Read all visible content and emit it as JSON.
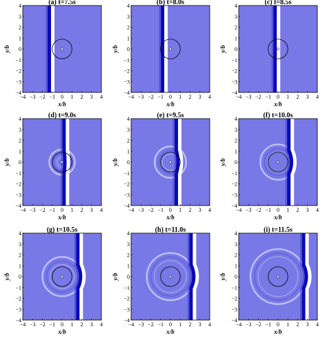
{
  "figure": {
    "colors": {
      "background": "#7878e6",
      "crest_core": "#0a0ab4",
      "crest_light": "#ffffff",
      "axis": "#000000"
    },
    "axis_labels": {
      "x": "x/b",
      "y": "y/b"
    }
  },
  "chart_data": [
    {
      "type": "heatmap",
      "title": "(a) t=7.5s",
      "xlabel": "x/b",
      "ylabel": "y/b",
      "xlim": [
        -4,
        4
      ],
      "ylim": [
        -4,
        4
      ],
      "xticks": [
        -4,
        -3,
        -2,
        -1,
        0,
        1,
        2,
        3,
        4
      ],
      "yticks": [
        4,
        3,
        2,
        1,
        0,
        -1,
        -2,
        -3,
        -4
      ],
      "wave_front_x": -1.3,
      "cylinder": {
        "center": [
          0,
          0
        ],
        "radius": 1
      },
      "scattered_wave_radius": null
    },
    {
      "type": "heatmap",
      "title": "(b) t=8.0s",
      "xlabel": "x/b",
      "ylabel": "y/b",
      "xlim": [
        -4,
        4
      ],
      "ylim": [
        -4,
        4
      ],
      "xticks": [
        -4,
        -3,
        -2,
        -1,
        0,
        1,
        2,
        3,
        4
      ],
      "yticks": [
        4,
        3,
        2,
        1,
        0,
        -1,
        -2,
        -3,
        -4
      ],
      "wave_front_x": -0.8,
      "cylinder": {
        "center": [
          0,
          0
        ],
        "radius": 1
      },
      "scattered_wave_radius": null
    },
    {
      "type": "heatmap",
      "title": "(c) t=8.5s",
      "xlabel": "x/b",
      "ylabel": "y/b",
      "xlim": [
        -4,
        4
      ],
      "ylim": [
        -4,
        4
      ],
      "xticks": [
        -4,
        -3,
        -2,
        -1,
        0,
        1,
        2,
        3,
        4
      ],
      "yticks": [
        4,
        3,
        2,
        1,
        0,
        -1,
        -2,
        -3,
        -4
      ],
      "wave_front_x": -0.3,
      "cylinder": {
        "center": [
          0,
          0
        ],
        "radius": 1
      },
      "scattered_wave_radius": null
    },
    {
      "type": "heatmap",
      "title": "(d) t=9.0s",
      "xlabel": "x/b",
      "ylabel": "y/b",
      "xlim": [
        -4,
        4
      ],
      "ylim": [
        -4,
        4
      ],
      "xticks": [
        -4,
        -3,
        -2,
        -1,
        0,
        1,
        2,
        3,
        4
      ],
      "yticks": [
        4,
        3,
        2,
        1,
        0,
        -1,
        -2,
        -3,
        -4
      ],
      "wave_front_x": 0.2,
      "cylinder": {
        "center": [
          0,
          0
        ],
        "radius": 1
      },
      "scattered_wave_radius": 1.3
    },
    {
      "type": "heatmap",
      "title": "(e) t=9.5s",
      "xlabel": "x/b",
      "ylabel": "y/b",
      "xlim": [
        -4,
        4
      ],
      "ylim": [
        -4,
        4
      ],
      "xticks": [
        -4,
        -3,
        -2,
        -1,
        0,
        1,
        2,
        3,
        4
      ],
      "yticks": [
        4,
        3,
        2,
        1,
        0,
        -1,
        -2,
        -3,
        -4
      ],
      "wave_front_x": 0.6,
      "cylinder": {
        "center": [
          0,
          0
        ],
        "radius": 1
      },
      "scattered_wave_radius": 1.6
    },
    {
      "type": "heatmap",
      "title": "(f) t=10.0s",
      "xlabel": "x/b",
      "ylabel": "y/b",
      "xlim": [
        -4,
        4
      ],
      "ylim": [
        -4,
        4
      ],
      "xticks": [
        -4,
        -3,
        -2,
        -1,
        0,
        1,
        2,
        3,
        4
      ],
      "yticks": [
        4,
        3,
        2,
        1,
        0,
        -1,
        -2,
        -3,
        -4
      ],
      "wave_front_x": 1.1,
      "cylinder": {
        "center": [
          0,
          0
        ],
        "radius": 1
      },
      "scattered_wave_radius": 1.8
    },
    {
      "type": "heatmap",
      "title": "(g) t=10.5s",
      "xlabel": "x/b",
      "ylabel": "y/b",
      "xlim": [
        -4,
        4
      ],
      "ylim": [
        -4,
        4
      ],
      "xticks": [
        -4,
        -3,
        -2,
        -1,
        0,
        1,
        2,
        3,
        4
      ],
      "yticks": [
        4,
        3,
        2,
        1,
        0,
        -1,
        -2,
        -3,
        -4
      ],
      "wave_front_x": 1.6,
      "cylinder": {
        "center": [
          0,
          0
        ],
        "radius": 1
      },
      "scattered_wave_radius": 2.0
    },
    {
      "type": "heatmap",
      "title": "(h) t=11.0s",
      "xlabel": "x/b",
      "ylabel": "y/b",
      "xlim": [
        -4,
        4
      ],
      "ylim": [
        -4,
        4
      ],
      "xticks": [
        -4,
        -3,
        -2,
        -1,
        0,
        1,
        2,
        3,
        4
      ],
      "yticks": [
        4,
        3,
        2,
        1,
        0,
        -1,
        -2,
        -3,
        -4
      ],
      "wave_front_x": 2.1,
      "cylinder": {
        "center": [
          0,
          0
        ],
        "radius": 1
      },
      "scattered_wave_radius": 2.4
    },
    {
      "type": "heatmap",
      "title": "(i) t=11.5s",
      "xlabel": "x/b",
      "ylabel": "y/b",
      "xlim": [
        -4,
        4
      ],
      "ylim": [
        -4,
        4
      ],
      "xticks": [
        -4,
        -3,
        -2,
        -1,
        0,
        1,
        2,
        3,
        4
      ],
      "yticks": [
        4,
        3,
        2,
        1,
        0,
        -1,
        -2,
        -3,
        -4
      ],
      "wave_front_x": 2.6,
      "cylinder": {
        "center": [
          0,
          0
        ],
        "radius": 1
      },
      "scattered_wave_radius": 2.8
    }
  ]
}
